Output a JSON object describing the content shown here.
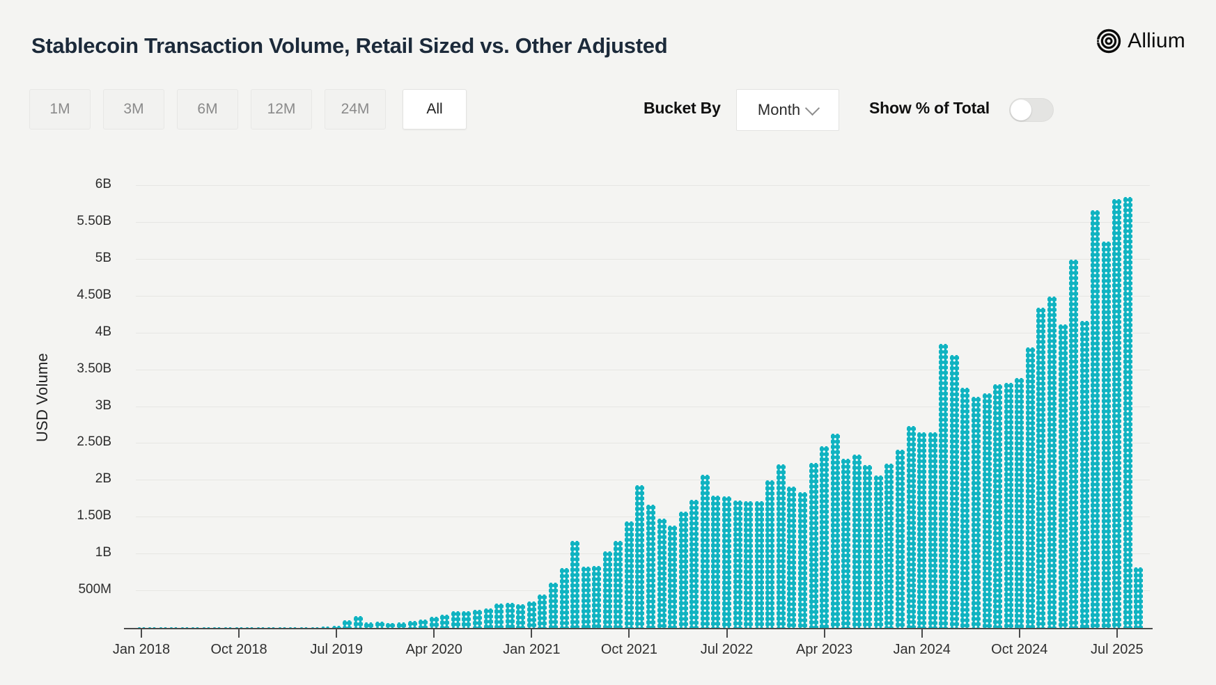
{
  "header": {
    "title": "Stablecoin Transaction Volume, Retail Sized vs. Other Adjusted",
    "logo_text": "Allium"
  },
  "controls": {
    "range_buttons": [
      {
        "label": "1M",
        "active": false
      },
      {
        "label": "3M",
        "active": false
      },
      {
        "label": "6M",
        "active": false
      },
      {
        "label": "12M",
        "active": false
      },
      {
        "label": "24M",
        "active": false
      },
      {
        "label": "All",
        "active": true
      }
    ],
    "bucket_by_label": "Bucket By",
    "bucket_by_value": "Month",
    "show_pct_label": "Show % of Total",
    "show_pct_state": "off"
  },
  "chart_data": {
    "type": "bar",
    "title": "Stablecoin Transaction Volume, Retail Sized vs. Other Adjusted",
    "xlabel": "",
    "ylabel": "USD Volume",
    "bar_color": "#10b3c1",
    "grid": true,
    "legend": "none",
    "ylim_musd": [
      0,
      6000
    ],
    "y_ticks": [
      {
        "label": "500M",
        "musd": 500
      },
      {
        "label": "1B",
        "musd": 1000
      },
      {
        "label": "1.50B",
        "musd": 1500
      },
      {
        "label": "2B",
        "musd": 2000
      },
      {
        "label": "2.50B",
        "musd": 2500
      },
      {
        "label": "3B",
        "musd": 3000
      },
      {
        "label": "3.50B",
        "musd": 3500
      },
      {
        "label": "4B",
        "musd": 4000
      },
      {
        "label": "4.50B",
        "musd": 4500
      },
      {
        "label": "5B",
        "musd": 5000
      },
      {
        "label": "5.50B",
        "musd": 5500
      },
      {
        "label": "6B",
        "musd": 6000
      }
    ],
    "x_ticks": [
      {
        "label": "Jan 2018",
        "month_index": 0
      },
      {
        "label": "Oct 2018",
        "month_index": 9
      },
      {
        "label": "Jul 2019",
        "month_index": 18
      },
      {
        "label": "Apr 2020",
        "month_index": 27
      },
      {
        "label": "Jan 2021",
        "month_index": 36
      },
      {
        "label": "Oct 2021",
        "month_index": 45
      },
      {
        "label": "Jul 2022",
        "month_index": 54
      },
      {
        "label": "Apr 2023",
        "month_index": 63
      },
      {
        "label": "Jan 2024",
        "month_index": 72
      },
      {
        "label": "Oct 2024",
        "month_index": 81
      },
      {
        "label": "Jul 2025",
        "month_index": 90
      }
    ],
    "categories": [
      "2018-01",
      "2018-02",
      "2018-03",
      "2018-04",
      "2018-05",
      "2018-06",
      "2018-07",
      "2018-08",
      "2018-09",
      "2018-10",
      "2018-11",
      "2018-12",
      "2019-01",
      "2019-02",
      "2019-03",
      "2019-04",
      "2019-05",
      "2019-06",
      "2019-07",
      "2019-08",
      "2019-09",
      "2019-10",
      "2019-11",
      "2019-12",
      "2020-01",
      "2020-02",
      "2020-03",
      "2020-04",
      "2020-05",
      "2020-06",
      "2020-07",
      "2020-08",
      "2020-09",
      "2020-10",
      "2020-11",
      "2020-12",
      "2021-01",
      "2021-02",
      "2021-03",
      "2021-04",
      "2021-05",
      "2021-06",
      "2021-07",
      "2021-08",
      "2021-09",
      "2021-10",
      "2021-11",
      "2021-12",
      "2022-01",
      "2022-02",
      "2022-03",
      "2022-04",
      "2022-05",
      "2022-06",
      "2022-07",
      "2022-08",
      "2022-09",
      "2022-10",
      "2022-11",
      "2022-12",
      "2023-01",
      "2023-02",
      "2023-03",
      "2023-04",
      "2023-05",
      "2023-06",
      "2023-07",
      "2023-08",
      "2023-09",
      "2023-10",
      "2023-11",
      "2023-12",
      "2024-01",
      "2024-02",
      "2024-03",
      "2024-04",
      "2024-05",
      "2024-06",
      "2024-07",
      "2024-08",
      "2024-09",
      "2024-10",
      "2024-11",
      "2024-12",
      "2025-01",
      "2025-02",
      "2025-03",
      "2025-04",
      "2025-05",
      "2025-06",
      "2025-07",
      "2025-08",
      "2025-09"
    ],
    "values_musd": [
      1,
      1,
      1,
      2,
      2,
      2,
      2,
      2,
      3,
      3,
      3,
      3,
      4,
      5,
      6,
      8,
      12,
      16,
      28,
      104,
      165,
      80,
      83,
      71,
      76,
      95,
      118,
      152,
      181,
      227,
      228,
      244,
      268,
      329,
      345,
      323,
      361,
      453,
      614,
      810,
      1180,
      836,
      842,
      1037,
      1180,
      1443,
      1939,
      1670,
      1483,
      1385,
      1575,
      1743,
      2075,
      1797,
      1784,
      1727,
      1717,
      1717,
      2005,
      2217,
      1917,
      1844,
      2240,
      2470,
      2635,
      2297,
      2351,
      2208,
      2069,
      2234,
      2421,
      2737,
      2652,
      2652,
      3858,
      3706,
      3256,
      3133,
      3180,
      3307,
      3329,
      3392,
      3807,
      4345,
      4500,
      4117,
      4994,
      4164,
      5668,
      5241,
      5817,
      5848,
      819
    ]
  }
}
